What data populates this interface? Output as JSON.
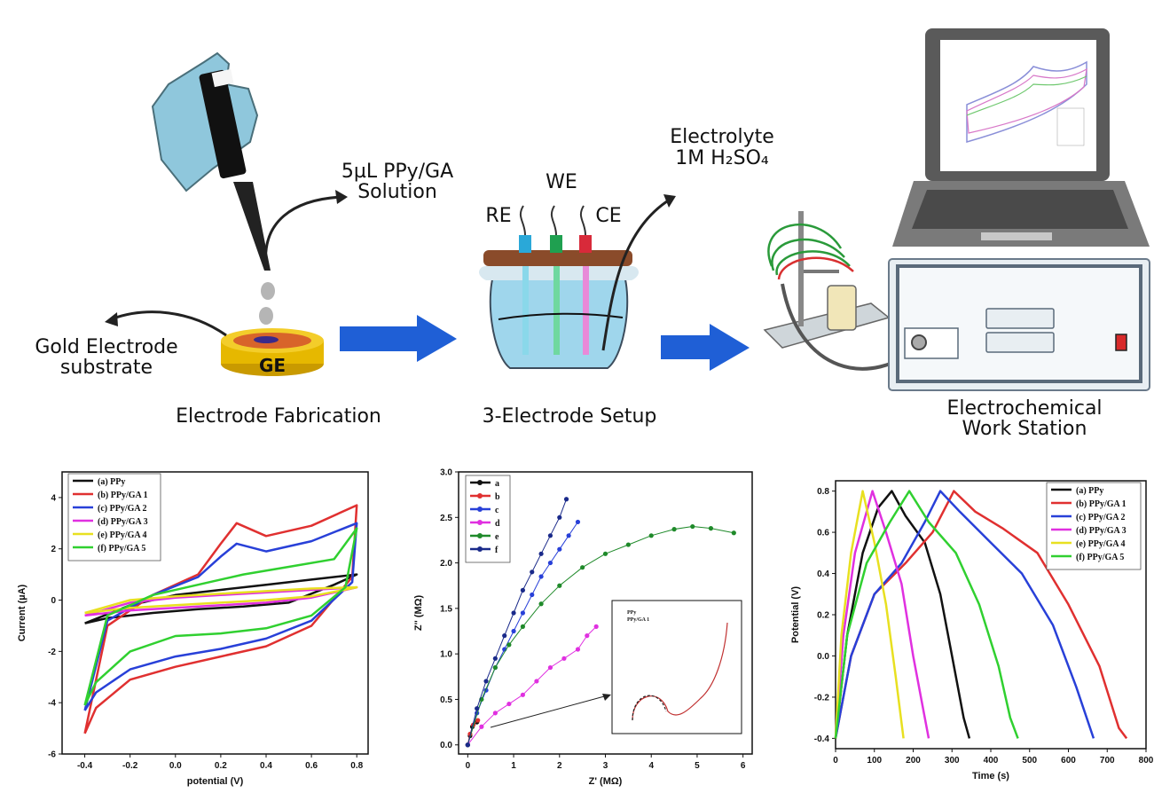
{
  "steps": {
    "gold_substrate": "Gold Electrode\nsubstrate",
    "solution": "5µL PPy/GA\nSolution",
    "fabrication": "Electrode Fabrication",
    "ge_label": "GE",
    "setup": "3-Electrode Setup",
    "we": "WE",
    "re": "RE",
    "ce": "CE",
    "electrolyte_1": "Electrolyte",
    "electrolyte_2": "1M H₂SO₄",
    "workstation": "Electrochemical\nWork Station"
  },
  "colors": {
    "arrow_blue": "#1f5fd6",
    "glove": "#8fc7dc",
    "gold": "#e6b800",
    "laptop": "#5a5a5a",
    "station": "#e8eef2",
    "station_panel": "#5a6a7a"
  },
  "chart_data": [
    {
      "type": "line",
      "xlabel": "potential (V)",
      "ylabel": "Current (µA)",
      "xlim": [
        -0.5,
        0.85
      ],
      "ylim": [
        -6,
        5
      ],
      "xticks": [
        "-0.4",
        "-0.2",
        "0.0",
        "0.2",
        "0.4",
        "0.6",
        "0.8"
      ],
      "yticks": [
        "-6",
        "-4",
        "-2",
        "0",
        "2",
        "4"
      ],
      "legend": [
        "(a) PPy",
        "(b) PPy/GA 1",
        "(c) PPy/GA 2",
        "(d) PPy/GA 3",
        "(e) PPy/GA 4",
        "(f) PPy/GA 5"
      ],
      "legend_position": "top-left",
      "series": [
        {
          "name": "(a) PPy",
          "color": "#111111",
          "points": [
            [
              -0.4,
              -0.9
            ],
            [
              -0.2,
              -0.2
            ],
            [
              0.0,
              0.2
            ],
            [
              0.2,
              0.4
            ],
            [
              0.4,
              0.6
            ],
            [
              0.6,
              0.8
            ],
            [
              0.8,
              1.0
            ],
            [
              0.7,
              0.6
            ],
            [
              0.5,
              -0.1
            ],
            [
              0.3,
              -0.25
            ],
            [
              0.1,
              -0.35
            ],
            [
              -0.1,
              -0.5
            ],
            [
              -0.3,
              -0.7
            ],
            [
              -0.4,
              -0.9
            ]
          ]
        },
        {
          "name": "(b) PPy/GA 1",
          "color": "#e03030",
          "points": [
            [
              -0.4,
              -5.2
            ],
            [
              -0.3,
              -1.0
            ],
            [
              -0.1,
              0.2
            ],
            [
              0.1,
              1.0
            ],
            [
              0.2,
              2.2
            ],
            [
              0.27,
              3.0
            ],
            [
              0.4,
              2.5
            ],
            [
              0.6,
              2.9
            ],
            [
              0.8,
              3.7
            ],
            [
              0.78,
              0.9
            ],
            [
              0.6,
              -1.0
            ],
            [
              0.4,
              -1.8
            ],
            [
              0.2,
              -2.2
            ],
            [
              0.0,
              -2.6
            ],
            [
              -0.2,
              -3.1
            ],
            [
              -0.35,
              -4.2
            ],
            [
              -0.4,
              -5.2
            ]
          ]
        },
        {
          "name": "(c) PPy/GA 2",
          "color": "#2840d8",
          "points": [
            [
              -0.4,
              -4.3
            ],
            [
              -0.3,
              -0.8
            ],
            [
              -0.1,
              0.2
            ],
            [
              0.1,
              0.9
            ],
            [
              0.2,
              1.7
            ],
            [
              0.27,
              2.2
            ],
            [
              0.4,
              1.9
            ],
            [
              0.6,
              2.3
            ],
            [
              0.8,
              3.0
            ],
            [
              0.78,
              0.7
            ],
            [
              0.6,
              -0.8
            ],
            [
              0.4,
              -1.5
            ],
            [
              0.2,
              -1.9
            ],
            [
              0.0,
              -2.2
            ],
            [
              -0.2,
              -2.7
            ],
            [
              -0.35,
              -3.6
            ],
            [
              -0.4,
              -4.3
            ]
          ]
        },
        {
          "name": "(d) PPy/GA 3",
          "color": "#e030e0",
          "points": [
            [
              -0.4,
              -0.6
            ],
            [
              -0.2,
              -0.1
            ],
            [
              0.0,
              0.1
            ],
            [
              0.2,
              0.2
            ],
            [
              0.4,
              0.3
            ],
            [
              0.6,
              0.4
            ],
            [
              0.8,
              0.5
            ],
            [
              0.6,
              0.1
            ],
            [
              0.4,
              -0.1
            ],
            [
              0.2,
              -0.2
            ],
            [
              0.0,
              -0.3
            ],
            [
              -0.2,
              -0.4
            ],
            [
              -0.4,
              -0.6
            ]
          ]
        },
        {
          "name": "(e) PPy/GA 4",
          "color": "#e8e020",
          "points": [
            [
              -0.4,
              -0.5
            ],
            [
              -0.2,
              0.0
            ],
            [
              0.0,
              0.15
            ],
            [
              0.2,
              0.25
            ],
            [
              0.4,
              0.35
            ],
            [
              0.6,
              0.45
            ],
            [
              0.8,
              0.5
            ],
            [
              0.6,
              0.15
            ],
            [
              0.4,
              0.0
            ],
            [
              0.2,
              -0.1
            ],
            [
              0.0,
              -0.2
            ],
            [
              -0.2,
              -0.3
            ],
            [
              -0.4,
              -0.5
            ]
          ]
        },
        {
          "name": "(f) PPy/GA 5",
          "color": "#30d030",
          "points": [
            [
              -0.4,
              -4.1
            ],
            [
              -0.3,
              -0.6
            ],
            [
              -0.1,
              0.2
            ],
            [
              0.1,
              0.6
            ],
            [
              0.3,
              1.0
            ],
            [
              0.5,
              1.3
            ],
            [
              0.7,
              1.6
            ],
            [
              0.8,
              2.8
            ],
            [
              0.75,
              0.5
            ],
            [
              0.6,
              -0.6
            ],
            [
              0.4,
              -1.1
            ],
            [
              0.2,
              -1.3
            ],
            [
              0.0,
              -1.4
            ],
            [
              -0.2,
              -2.0
            ],
            [
              -0.35,
              -3.2
            ],
            [
              -0.4,
              -4.1
            ]
          ]
        }
      ]
    },
    {
      "type": "scatter",
      "xlabel": "Z' (MΩ)",
      "ylabel": "Z'' (MΩ)",
      "xlim": [
        -0.2,
        6.2
      ],
      "ylim": [
        -0.1,
        3.0
      ],
      "xticks": [
        "0",
        "1",
        "2",
        "3",
        "4",
        "5",
        "6"
      ],
      "yticks": [
        "0.0",
        "0.5",
        "1.0",
        "1.5",
        "2.0",
        "2.5",
        "3.0"
      ],
      "legend": [
        "a",
        "b",
        "c",
        "d",
        "e",
        "f"
      ],
      "legend_position": "top-left",
      "inset_legend": [
        "PPy",
        "PPy/GA 1"
      ],
      "series": [
        {
          "name": "a",
          "color": "#111111",
          "points": [
            [
              0.0,
              0.0
            ],
            [
              0.05,
              0.1
            ],
            [
              0.1,
              0.2
            ],
            [
              0.2,
              0.25
            ]
          ]
        },
        {
          "name": "b",
          "color": "#e03030",
          "points": [
            [
              0.0,
              0.0
            ],
            [
              0.05,
              0.12
            ],
            [
              0.12,
              0.22
            ],
            [
              0.22,
              0.27
            ]
          ]
        },
        {
          "name": "c",
          "color": "#2840d8",
          "points": [
            [
              0.0,
              0.0
            ],
            [
              0.2,
              0.35
            ],
            [
              0.4,
              0.6
            ],
            [
              0.6,
              0.85
            ],
            [
              0.8,
              1.05
            ],
            [
              1.0,
              1.25
            ],
            [
              1.2,
              1.45
            ],
            [
              1.4,
              1.65
            ],
            [
              1.6,
              1.85
            ],
            [
              1.8,
              2.0
            ],
            [
              2.0,
              2.15
            ],
            [
              2.2,
              2.3
            ],
            [
              2.4,
              2.45
            ]
          ]
        },
        {
          "name": "d",
          "color": "#e030e0",
          "points": [
            [
              0.0,
              0.0
            ],
            [
              0.3,
              0.2
            ],
            [
              0.6,
              0.35
            ],
            [
              0.9,
              0.45
            ],
            [
              1.2,
              0.55
            ],
            [
              1.5,
              0.7
            ],
            [
              1.8,
              0.85
            ],
            [
              2.1,
              0.95
            ],
            [
              2.4,
              1.05
            ],
            [
              2.6,
              1.2
            ],
            [
              2.8,
              1.3
            ]
          ]
        },
        {
          "name": "e",
          "color": "#1f8a2a",
          "points": [
            [
              0.0,
              0.0
            ],
            [
              0.3,
              0.5
            ],
            [
              0.6,
              0.85
            ],
            [
              0.9,
              1.1
            ],
            [
              1.2,
              1.3
            ],
            [
              1.6,
              1.55
            ],
            [
              2.0,
              1.75
            ],
            [
              2.5,
              1.95
            ],
            [
              3.0,
              2.1
            ],
            [
              3.5,
              2.2
            ],
            [
              4.0,
              2.3
            ],
            [
              4.5,
              2.37
            ],
            [
              4.9,
              2.4
            ],
            [
              5.3,
              2.38
            ],
            [
              5.8,
              2.33
            ]
          ]
        },
        {
          "name": "f",
          "color": "#1a2a8a",
          "points": [
            [
              0.0,
              0.0
            ],
            [
              0.2,
              0.4
            ],
            [
              0.4,
              0.7
            ],
            [
              0.6,
              0.95
            ],
            [
              0.8,
              1.2
            ],
            [
              1.0,
              1.45
            ],
            [
              1.2,
              1.7
            ],
            [
              1.4,
              1.9
            ],
            [
              1.6,
              2.1
            ],
            [
              1.8,
              2.3
            ],
            [
              2.0,
              2.5
            ],
            [
              2.15,
              2.7
            ]
          ]
        }
      ]
    },
    {
      "type": "line",
      "xlabel": "Time (s)",
      "ylabel": "Potential (V)",
      "xlim": [
        0,
        800
      ],
      "ylim": [
        -0.45,
        0.85
      ],
      "xticks": [
        "0",
        "100",
        "200",
        "300",
        "400",
        "500",
        "600",
        "700",
        "800"
      ],
      "yticks": [
        "-0.4",
        "-0.2",
        "0.0",
        "0.2",
        "0.4",
        "0.6",
        "0.8"
      ],
      "legend": [
        "(a) PPy",
        "(b) PPy/GA 1",
        "(c) PPy/GA 2",
        "(d) PPy/GA 3",
        "(e) PPy/GA 4",
        "(f) PPy/GA 5"
      ],
      "legend_position": "top-right",
      "series": [
        {
          "name": "(a) PPy",
          "color": "#111111",
          "points": [
            [
              0,
              -0.4
            ],
            [
              30,
              0.1
            ],
            [
              70,
              0.5
            ],
            [
              110,
              0.72
            ],
            [
              145,
              0.8
            ],
            [
              180,
              0.68
            ],
            [
              230,
              0.55
            ],
            [
              270,
              0.3
            ],
            [
              300,
              0.0
            ],
            [
              330,
              -0.3
            ],
            [
              345,
              -0.4
            ]
          ]
        },
        {
          "name": "(b) PPy/GA 1",
          "color": "#e03030",
          "points": [
            [
              0,
              -0.4
            ],
            [
              40,
              0.0
            ],
            [
              100,
              0.3
            ],
            [
              180,
              0.45
            ],
            [
              250,
              0.6
            ],
            [
              305,
              0.8
            ],
            [
              360,
              0.7
            ],
            [
              430,
              0.62
            ],
            [
              520,
              0.5
            ],
            [
              600,
              0.25
            ],
            [
              680,
              -0.05
            ],
            [
              730,
              -0.35
            ],
            [
              750,
              -0.4
            ]
          ]
        },
        {
          "name": "(c) PPy/GA 2",
          "color": "#2840d8",
          "points": [
            [
              0,
              -0.4
            ],
            [
              40,
              0.0
            ],
            [
              100,
              0.3
            ],
            [
              170,
              0.45
            ],
            [
              230,
              0.65
            ],
            [
              270,
              0.8
            ],
            [
              320,
              0.7
            ],
            [
              400,
              0.55
            ],
            [
              480,
              0.4
            ],
            [
              560,
              0.15
            ],
            [
              620,
              -0.15
            ],
            [
              665,
              -0.4
            ]
          ]
        },
        {
          "name": "(d) PPy/GA 3",
          "color": "#e030e0",
          "points": [
            [
              0,
              -0.4
            ],
            [
              20,
              0.1
            ],
            [
              50,
              0.5
            ],
            [
              95,
              0.8
            ],
            [
              130,
              0.6
            ],
            [
              170,
              0.35
            ],
            [
              200,
              0.0
            ],
            [
              225,
              -0.25
            ],
            [
              240,
              -0.4
            ]
          ]
        },
        {
          "name": "(e) PPy/GA 4",
          "color": "#e8e020",
          "points": [
            [
              0,
              -0.4
            ],
            [
              15,
              0.1
            ],
            [
              40,
              0.5
            ],
            [
              70,
              0.8
            ],
            [
              100,
              0.55
            ],
            [
              130,
              0.25
            ],
            [
              155,
              -0.1
            ],
            [
              175,
              -0.4
            ]
          ]
        },
        {
          "name": "(f) PPy/GA 5",
          "color": "#30d030",
          "points": [
            [
              0,
              -0.4
            ],
            [
              30,
              0.1
            ],
            [
              80,
              0.45
            ],
            [
              140,
              0.65
            ],
            [
              190,
              0.8
            ],
            [
              240,
              0.65
            ],
            [
              310,
              0.5
            ],
            [
              370,
              0.25
            ],
            [
              420,
              -0.05
            ],
            [
              450,
              -0.3
            ],
            [
              470,
              -0.4
            ]
          ]
        }
      ]
    }
  ]
}
